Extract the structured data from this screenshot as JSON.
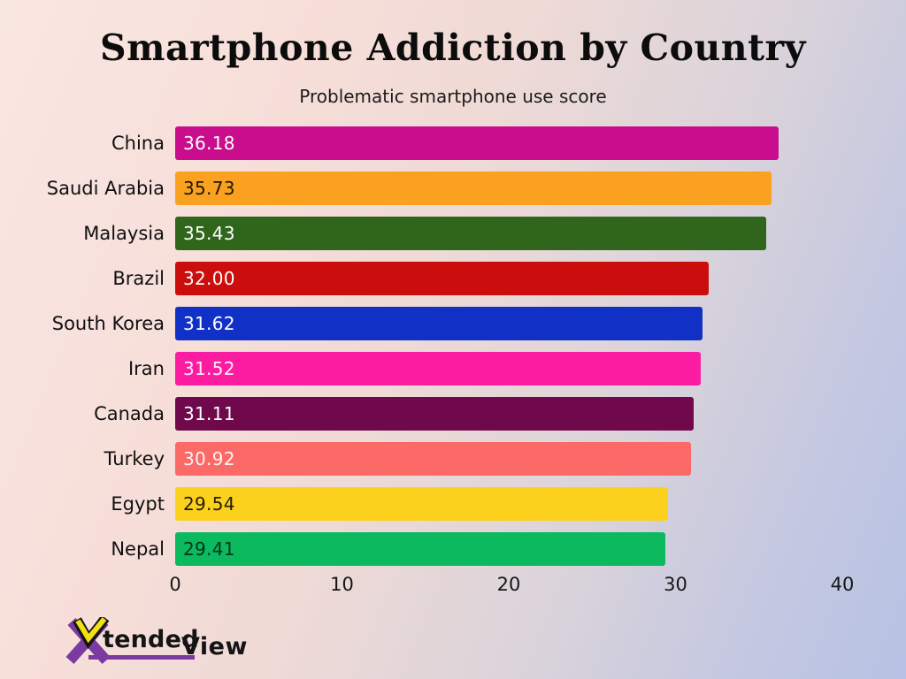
{
  "header": {
    "title": "Smartphone Addiction by Country",
    "subtitle": "Problematic smartphone use score"
  },
  "chart_data": {
    "type": "bar",
    "orientation": "horizontal",
    "title": "Smartphone Addiction by Country",
    "subtitle": "Problematic smartphone use score",
    "xlabel": "",
    "ylabel": "",
    "categories": [
      "China",
      "Saudi Arabia",
      "Malaysia",
      "Brazil",
      "South Korea",
      "Iran",
      "Canada",
      "Turkey",
      "Egypt",
      "Nepal"
    ],
    "values": [
      36.18,
      35.73,
      35.43,
      32.0,
      31.62,
      31.52,
      31.11,
      30.92,
      29.54,
      29.41
    ],
    "value_labels": [
      "36.18",
      "35.73",
      "35.43",
      "32.00",
      "31.62",
      "31.52",
      "31.11",
      "30.92",
      "29.54",
      "29.41"
    ],
    "bar_colors": [
      "#c90d8c",
      "#faa21f",
      "#30661c",
      "#cb0d0d",
      "#1130c6",
      "#fc1ca2",
      "#6f094b",
      "#fc6a67",
      "#fcd11e",
      "#0bb95e"
    ],
    "value_text_colors": [
      "#ffffff",
      "#1f1507",
      "#ffffff",
      "#ffffff",
      "#ffffff",
      "#ffeef8",
      "#ffffff",
      "#fff3f2",
      "#231c03",
      "#06331c"
    ],
    "x_ticks": [
      0,
      10,
      20,
      30,
      40
    ],
    "xlim": [
      0,
      40
    ],
    "grid": false,
    "legend": false
  },
  "branding": {
    "logo_part1": "tended",
    "logo_part2": "View",
    "logo_purple": "#7b3aa0",
    "logo_yellow": "#f2e013",
    "logo_black": "#141414"
  }
}
